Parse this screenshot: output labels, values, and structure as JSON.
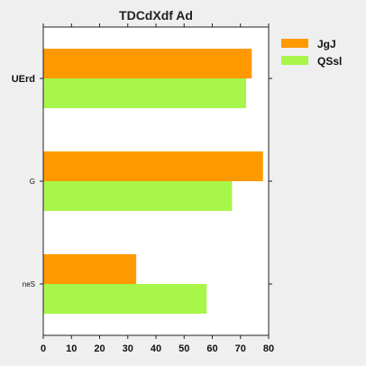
{
  "chart_data": {
    "type": "bar",
    "orientation": "horizontal",
    "title": "TDCdXdf Ad",
    "xlabel": "",
    "ylabel": "",
    "categories": [
      "UErd",
      "G",
      "neS"
    ],
    "category_label_bold": [
      true,
      false,
      false
    ],
    "series": [
      {
        "name": "JgJ",
        "color": "#ff9900",
        "values": [
          74,
          78,
          33
        ]
      },
      {
        "name": "QSsl",
        "color": "#a9f64a",
        "values": [
          72,
          67,
          58
        ]
      }
    ],
    "xlim": [
      0,
      80
    ],
    "xticks": [
      0,
      10,
      20,
      30,
      40,
      50,
      60,
      70,
      80
    ],
    "grid": false,
    "legend_position": "top-right",
    "background_color": "#efefef",
    "plot_background_color": "#ffffff"
  }
}
